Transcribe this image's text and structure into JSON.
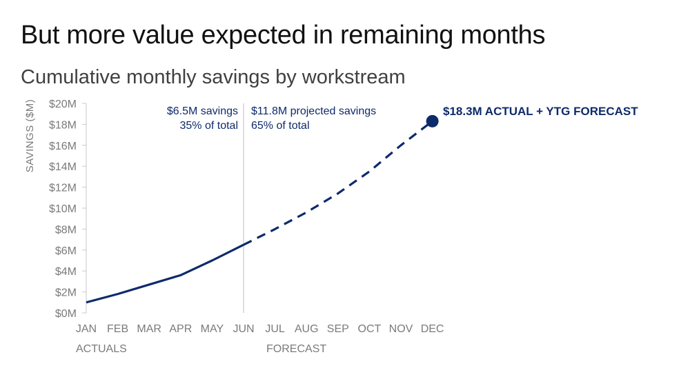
{
  "title": "But more value expected in remaining months",
  "subtitle": "Cumulative monthly savings by workstream",
  "colors": {
    "line": "#0d2a6b",
    "axis": "#c8c8c8",
    "text": "#7a7a7a"
  },
  "chart_data": {
    "type": "line",
    "ylabel": "SAVINGS ($M)",
    "ylim": [
      0,
      20
    ],
    "yticks": [
      "$0M",
      "$2M",
      "$4M",
      "$6M",
      "$8M",
      "$10M",
      "$12M",
      "$14M",
      "$16M",
      "$18M",
      "$20M"
    ],
    "categories": [
      "JAN",
      "FEB",
      "MAR",
      "APR",
      "MAY",
      "JUN",
      "JUL",
      "AUG",
      "SEP",
      "OCT",
      "NOV",
      "DEC"
    ],
    "series": [
      {
        "style": "solid",
        "x": [
          "JAN",
          "FEB",
          "MAR",
          "APR",
          "MAY",
          "JUN"
        ],
        "values": [
          1.0,
          1.8,
          2.7,
          3.6,
          5.0,
          6.5
        ]
      },
      {
        "style": "dashed",
        "x": [
          "JUN",
          "JUL",
          "AUG",
          "SEP",
          "OCT",
          "NOV",
          "DEC"
        ],
        "values": [
          6.5,
          8.0,
          9.6,
          11.4,
          13.5,
          16.0,
          18.3
        ]
      }
    ],
    "period_labels": {
      "actuals": "ACTUALS",
      "forecast": "FORECAST"
    },
    "annotations": {
      "actual_amount": "$6.5M savings",
      "actual_share": "35% of total",
      "projected_amount": "$11.8M projected savings",
      "projected_share": "65% of total",
      "endpoint": "$18.3M ACTUAL + YTG FORECAST"
    }
  }
}
